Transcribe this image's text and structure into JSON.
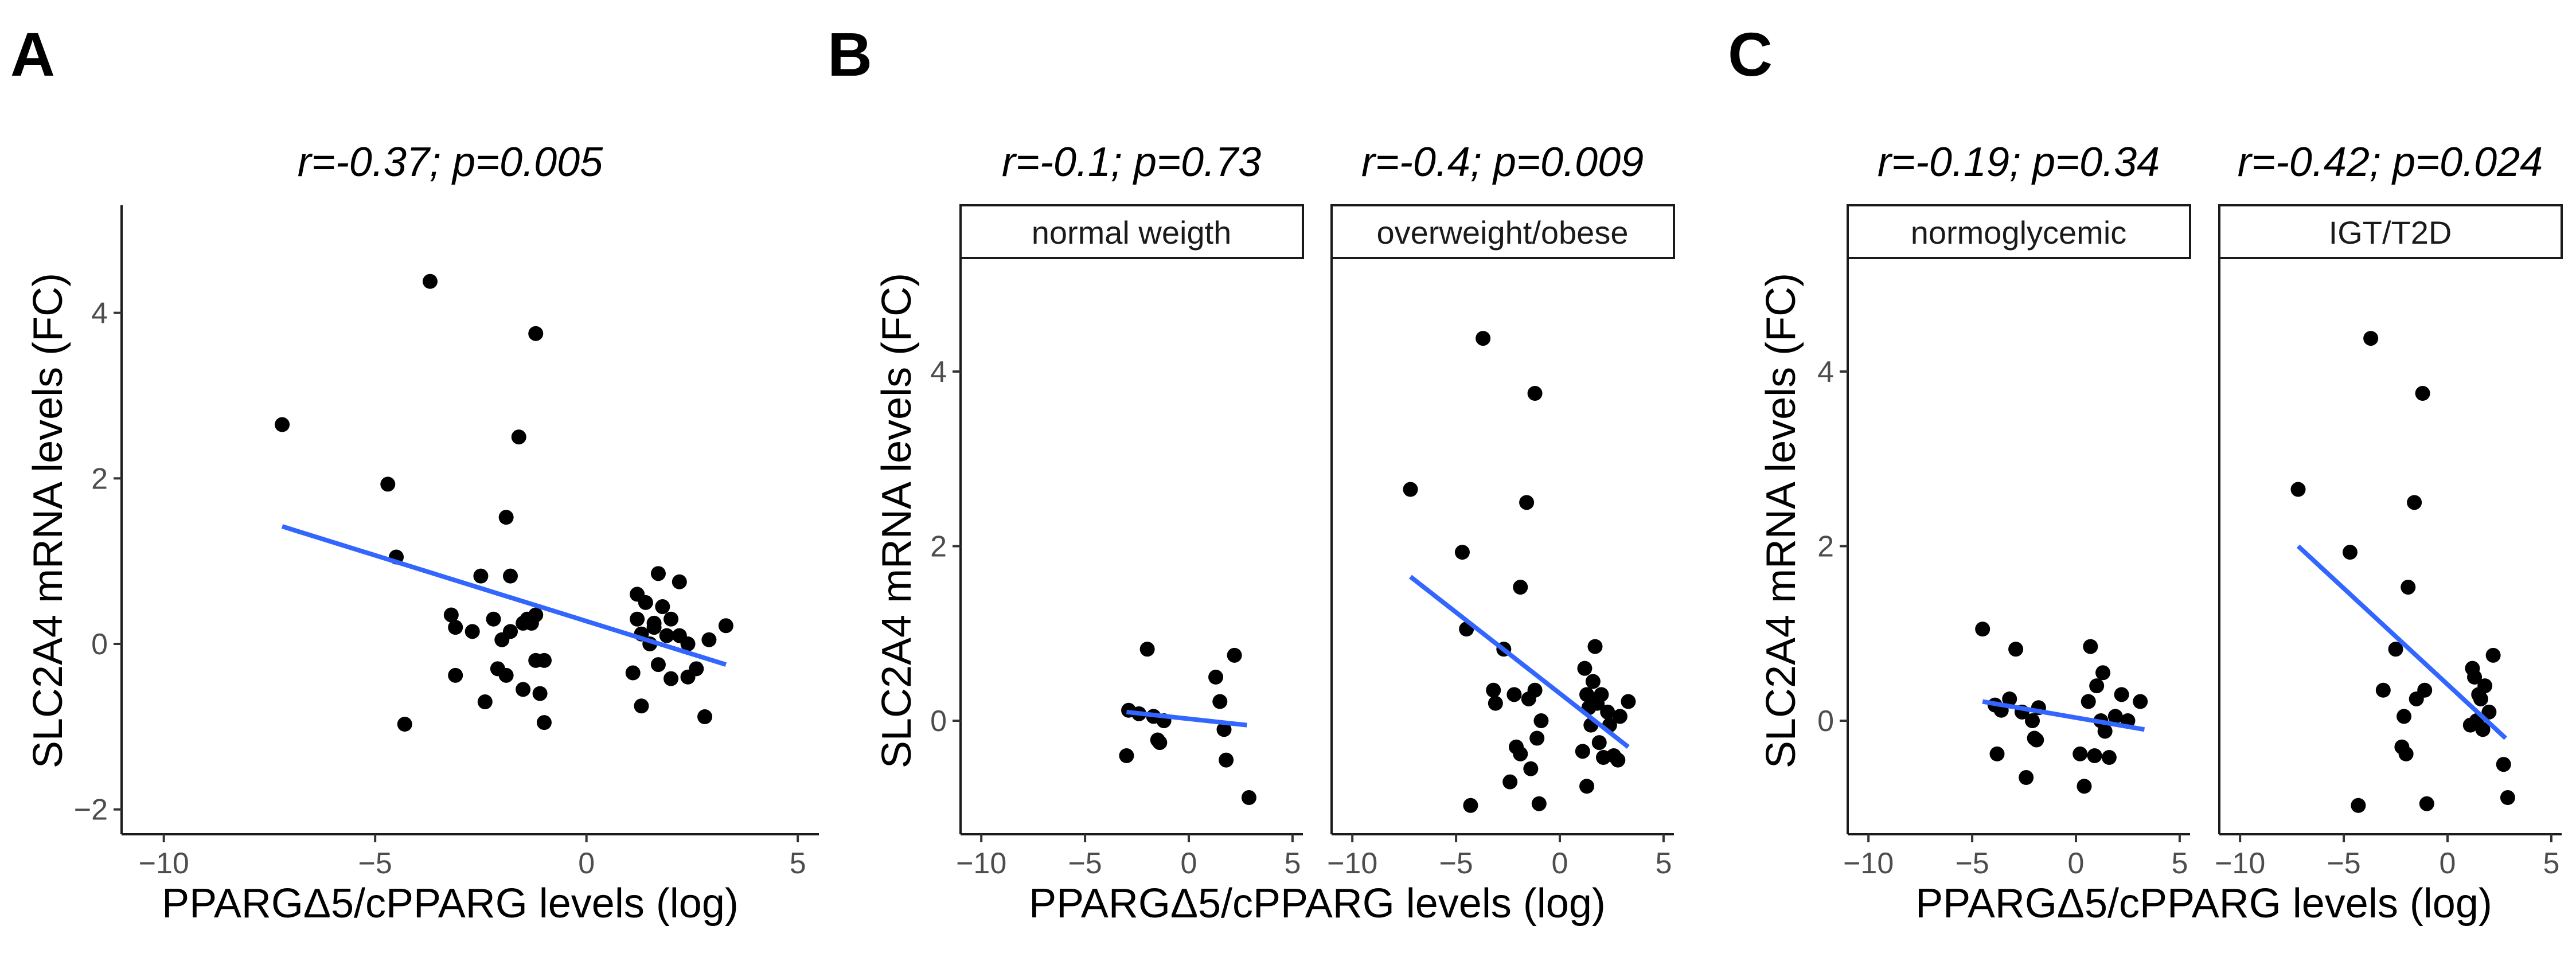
{
  "colors": {
    "point": "#000000",
    "fit": "#3366FF"
  },
  "panels": [
    {
      "letter": "A",
      "ylabel": "SLC2A4 mRNA levels (FC)",
      "xlabel": "PPARGΔ5/cPPARG levels (log)"
    },
    {
      "letter": "B",
      "ylabel": "SLC2A4 mRNA levels (FC)",
      "xlabel": "PPARGΔ5/cPPARG levels (log)"
    },
    {
      "letter": "C",
      "ylabel": "SLC2A4 mRNA levels (FC)",
      "xlabel": "PPARGΔ5/cPPARG levels (log)"
    }
  ],
  "chart_data": [
    {
      "type": "scatter",
      "panel": "A",
      "title": "r=-0.37; p=0.005",
      "xlabel": "PPARGΔ5/cPPARG levels (log)",
      "ylabel": "SLC2A4 mRNA levels (FC)",
      "xlim": [
        -11,
        5.5
      ],
      "ylim": [
        -2.3,
        5.3
      ],
      "xticks": [
        -10,
        -5,
        0,
        5
      ],
      "xtick_labels": [
        "−10",
        "−5",
        "0",
        "5"
      ],
      "yticks": [
        -2,
        0,
        2,
        4
      ],
      "ytick_labels": [
        "−2",
        "0",
        "2",
        "4"
      ],
      "facets": [
        {
          "strip": "",
          "fit": {
            "x": [
              -7.2,
              3.3
            ],
            "y": [
              1.42,
              -0.25
            ]
          },
          "points": [
            [
              -7.2,
              2.65
            ],
            [
              -4.7,
              1.93
            ],
            [
              -4.5,
              1.05
            ],
            [
              -4.3,
              -0.97
            ],
            [
              -3.7,
              4.38
            ],
            [
              -3.2,
              0.35
            ],
            [
              -3.1,
              0.2
            ],
            [
              -3.1,
              -0.38
            ],
            [
              -2.7,
              0.15
            ],
            [
              -2.5,
              0.82
            ],
            [
              -2.4,
              -0.7
            ],
            [
              -2.2,
              0.3
            ],
            [
              -2.1,
              -0.3
            ],
            [
              -2.0,
              0.05
            ],
            [
              -1.9,
              1.53
            ],
            [
              -1.9,
              -0.38
            ],
            [
              -1.8,
              0.82
            ],
            [
              -1.8,
              0.15
            ],
            [
              -1.6,
              2.5
            ],
            [
              -1.5,
              0.25
            ],
            [
              -1.5,
              -0.55
            ],
            [
              -1.4,
              0.3
            ],
            [
              -1.3,
              0.25
            ],
            [
              -1.2,
              3.75
            ],
            [
              -1.2,
              0.35
            ],
            [
              -1.2,
              -0.2
            ],
            [
              -1.1,
              -0.6
            ],
            [
              -1.0,
              -0.95
            ],
            [
              -1.0,
              -0.2
            ],
            [
              1.1,
              -0.35
            ],
            [
              1.2,
              0.6
            ],
            [
              1.2,
              0.3
            ],
            [
              1.3,
              0.12
            ],
            [
              1.3,
              -0.75
            ],
            [
              1.4,
              0.5
            ],
            [
              1.5,
              0.0
            ],
            [
              1.6,
              0.25
            ],
            [
              1.6,
              0.2
            ],
            [
              1.7,
              0.85
            ],
            [
              1.7,
              -0.25
            ],
            [
              1.8,
              0.45
            ],
            [
              1.9,
              0.1
            ],
            [
              2.0,
              0.3
            ],
            [
              2.0,
              -0.42
            ],
            [
              2.2,
              0.75
            ],
            [
              2.2,
              0.1
            ],
            [
              2.4,
              0.0
            ],
            [
              2.4,
              -0.4
            ],
            [
              2.6,
              -0.3
            ],
            [
              2.8,
              -0.88
            ],
            [
              2.9,
              0.05
            ],
            [
              3.3,
              0.22
            ]
          ]
        }
      ]
    },
    {
      "type": "scatter",
      "panel": "B",
      "xlim": [
        -11,
        5.5
      ],
      "ylim": [
        -1.3,
        5.3
      ],
      "xticks": [
        -10,
        -5,
        0,
        5
      ],
      "xtick_labels": [
        "−10",
        "−5",
        "0",
        "5"
      ],
      "yticks": [
        0,
        2,
        4
      ],
      "ytick_labels": [
        "0",
        "2",
        "4"
      ],
      "xlabel": "PPARGΔ5/cPPARG levels (log)",
      "ylabel": "SLC2A4 mRNA levels (FC)",
      "facets": [
        {
          "title": "r=-0.1; p=0.73",
          "strip": "normal weigth",
          "fit": {
            "x": [
              -3.0,
              2.8
            ],
            "y": [
              0.1,
              -0.05
            ]
          },
          "points": [
            [
              -3.0,
              -0.4
            ],
            [
              -2.9,
              0.12
            ],
            [
              -2.4,
              0.08
            ],
            [
              -2.0,
              0.82
            ],
            [
              -1.7,
              0.05
            ],
            [
              -1.5,
              -0.22
            ],
            [
              -1.4,
              -0.25
            ],
            [
              -1.2,
              0.0
            ],
            [
              1.3,
              0.5
            ],
            [
              1.5,
              0.22
            ],
            [
              1.7,
              -0.1
            ],
            [
              1.8,
              -0.45
            ],
            [
              2.2,
              0.75
            ],
            [
              2.9,
              -0.88
            ]
          ]
        },
        {
          "title": "r=-0.4; p=0.009",
          "strip": "overweight/obese",
          "fit": {
            "x": [
              -7.2,
              3.3
            ],
            "y": [
              1.65,
              -0.3
            ]
          },
          "points": [
            [
              -7.2,
              2.65
            ],
            [
              -4.7,
              1.93
            ],
            [
              -4.5,
              1.05
            ],
            [
              -4.3,
              -0.97
            ],
            [
              -3.7,
              4.38
            ],
            [
              -3.2,
              0.35
            ],
            [
              -3.1,
              0.2
            ],
            [
              -2.7,
              0.82
            ],
            [
              -2.4,
              -0.7
            ],
            [
              -2.2,
              0.3
            ],
            [
              -2.1,
              -0.3
            ],
            [
              -1.9,
              1.53
            ],
            [
              -1.9,
              -0.38
            ],
            [
              -1.6,
              2.5
            ],
            [
              -1.5,
              0.25
            ],
            [
              -1.4,
              -0.55
            ],
            [
              -1.2,
              3.75
            ],
            [
              -1.2,
              0.35
            ],
            [
              -1.1,
              -0.2
            ],
            [
              -1.0,
              -0.95
            ],
            [
              -0.9,
              0.0
            ],
            [
              1.1,
              -0.35
            ],
            [
              1.2,
              0.6
            ],
            [
              1.3,
              0.3
            ],
            [
              1.3,
              -0.75
            ],
            [
              1.4,
              0.15
            ],
            [
              1.5,
              -0.05
            ],
            [
              1.6,
              0.45
            ],
            [
              1.7,
              0.85
            ],
            [
              1.8,
              0.2
            ],
            [
              1.9,
              -0.25
            ],
            [
              2.0,
              0.3
            ],
            [
              2.1,
              -0.42
            ],
            [
              2.3,
              0.1
            ],
            [
              2.4,
              -0.05
            ],
            [
              2.6,
              -0.4
            ],
            [
              2.8,
              -0.45
            ],
            [
              2.9,
              0.05
            ],
            [
              3.3,
              0.22
            ]
          ]
        }
      ]
    },
    {
      "type": "scatter",
      "panel": "C",
      "xlim": [
        -11,
        5.5
      ],
      "ylim": [
        -1.3,
        5.3
      ],
      "xticks": [
        -10,
        -5,
        0,
        5
      ],
      "xtick_labels": [
        "−10",
        "−5",
        "0",
        "5"
      ],
      "yticks": [
        0,
        2,
        4
      ],
      "ytick_labels": [
        "0",
        "2",
        "4"
      ],
      "xlabel": "PPARGΔ5/cPPARG levels (log)",
      "ylabel": "SLC2A4 mRNA levels (FC)",
      "facets": [
        {
          "title": "r=-0.19; p=0.34",
          "strip": "normoglycemic",
          "fit": {
            "x": [
              -4.5,
              3.3
            ],
            "y": [
              0.22,
              -0.1
            ]
          },
          "points": [
            [
              -4.5,
              1.05
            ],
            [
              -3.9,
              0.18
            ],
            [
              -3.8,
              -0.38
            ],
            [
              -3.6,
              0.12
            ],
            [
              -3.2,
              0.25
            ],
            [
              -2.9,
              0.82
            ],
            [
              -2.6,
              0.1
            ],
            [
              -2.4,
              -0.65
            ],
            [
              -2.1,
              0.0
            ],
            [
              -2.0,
              -0.2
            ],
            [
              -1.9,
              -0.22
            ],
            [
              -1.8,
              0.15
            ],
            [
              0.2,
              -0.38
            ],
            [
              0.4,
              -0.75
            ],
            [
              0.6,
              0.22
            ],
            [
              0.7,
              0.85
            ],
            [
              0.9,
              -0.4
            ],
            [
              1.0,
              0.4
            ],
            [
              1.2,
              0.0
            ],
            [
              1.3,
              0.55
            ],
            [
              1.4,
              -0.12
            ],
            [
              1.6,
              -0.42
            ],
            [
              1.9,
              0.05
            ],
            [
              2.2,
              0.3
            ],
            [
              2.5,
              0.0
            ],
            [
              3.1,
              0.22
            ]
          ]
        },
        {
          "title": "r=-0.42; p=0.024",
          "strip": "IGT/T2D",
          "fit": {
            "x": [
              -7.2,
              2.8
            ],
            "y": [
              2.0,
              -0.2
            ]
          },
          "points": [
            [
              -7.2,
              2.65
            ],
            [
              -4.7,
              1.93
            ],
            [
              -4.3,
              -0.97
            ],
            [
              -3.7,
              4.38
            ],
            [
              -3.1,
              0.35
            ],
            [
              -2.5,
              0.82
            ],
            [
              -2.2,
              -0.3
            ],
            [
              -2.1,
              0.05
            ],
            [
              -2.0,
              -0.38
            ],
            [
              -1.9,
              1.53
            ],
            [
              -1.6,
              2.5
            ],
            [
              -1.5,
              0.25
            ],
            [
              -1.2,
              3.75
            ],
            [
              -1.1,
              0.35
            ],
            [
              -1.0,
              -0.95
            ],
            [
              1.1,
              -0.05
            ],
            [
              1.2,
              0.6
            ],
            [
              1.3,
              0.5
            ],
            [
              1.4,
              0.0
            ],
            [
              1.5,
              0.3
            ],
            [
              1.6,
              0.25
            ],
            [
              1.7,
              -0.1
            ],
            [
              1.8,
              0.4
            ],
            [
              2.0,
              0.1
            ],
            [
              2.2,
              0.75
            ],
            [
              2.7,
              -0.5
            ],
            [
              2.9,
              -0.88
            ]
          ]
        }
      ]
    }
  ]
}
